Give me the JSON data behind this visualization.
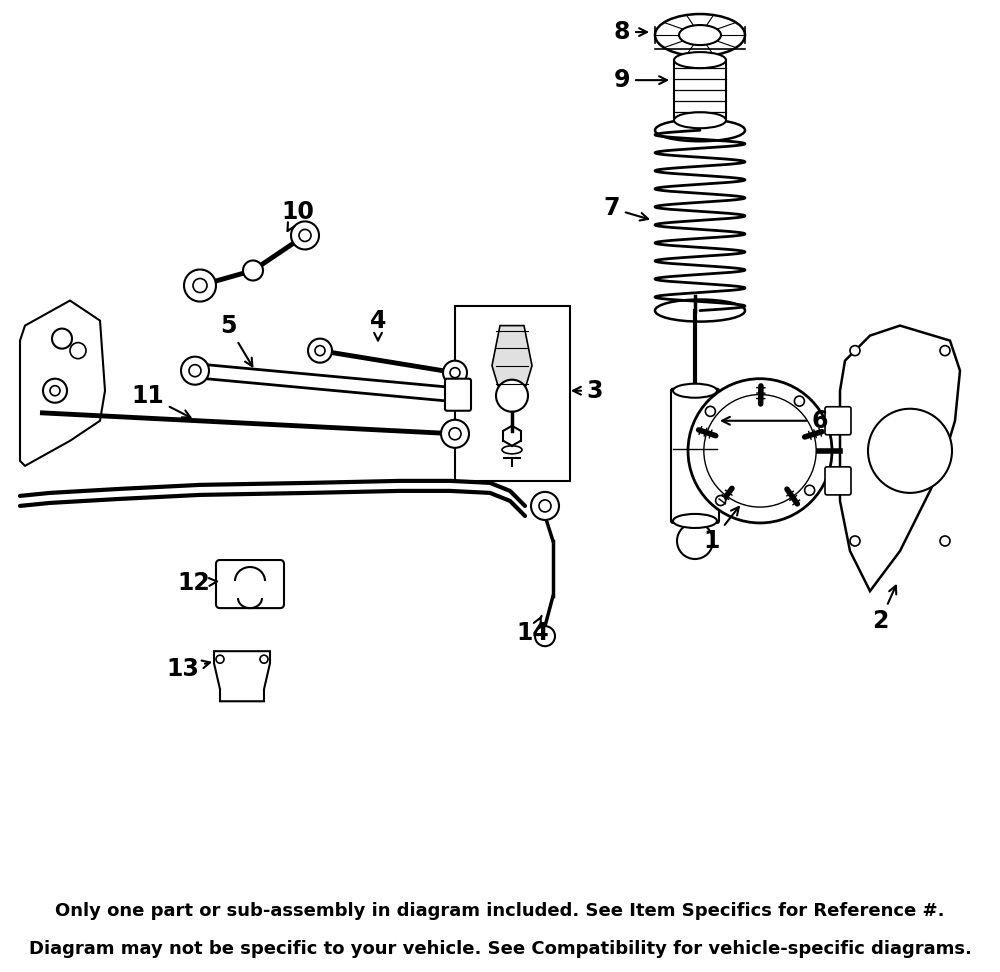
{
  "bg_color": "#ffffff",
  "footer_bg": "#E87722",
  "footer_text_line1": "Only one part or sub-assembly in diagram included. See Item Specifics for Reference #.",
  "footer_text_line2": "Diagram may not be specific to your vehicle. See Compatibility for vehicle-specific diagrams.",
  "footer_color": "#000000",
  "footer_fontsize": 13.0,
  "label_fontsize": 17,
  "label_fontweight": "bold",
  "line_color": "#000000"
}
